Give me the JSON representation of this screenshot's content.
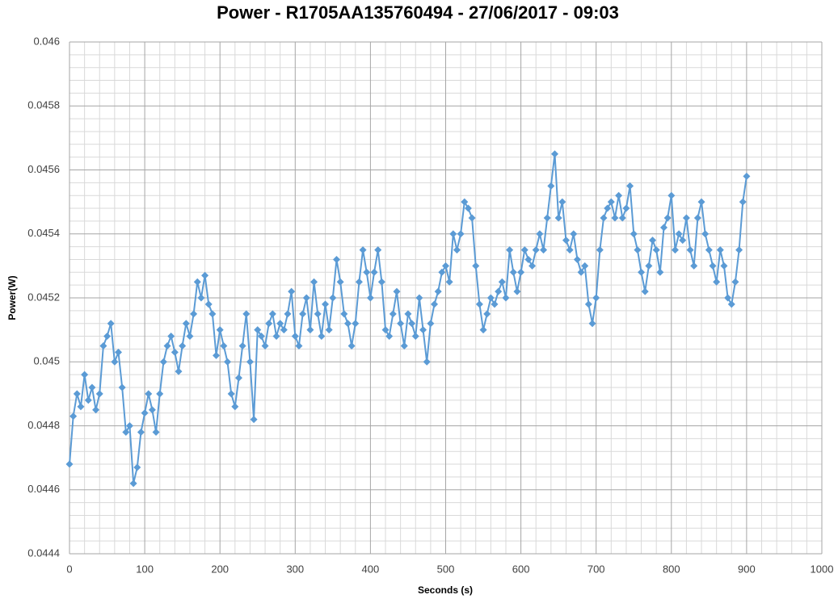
{
  "chart_data": {
    "type": "line",
    "title": "Power - R1705AA135760494 - 27/06/2017 - 09:03",
    "x_label": "Seconds (s)",
    "y_label": "Power(W)",
    "xlim": [
      0,
      1000
    ],
    "xticks": [
      0,
      100,
      200,
      300,
      400,
      500,
      600,
      700,
      800,
      900,
      1000
    ],
    "ylim": [
      0.0444,
      0.046
    ],
    "yticks": [
      0.0444,
      0.0446,
      0.0448,
      0.045,
      0.0452,
      0.0454,
      0.0456,
      0.0458,
      0.046
    ],
    "grid": true,
    "minor_grid": 5,
    "marker": "diamond",
    "x": [
      0,
      5,
      10,
      15,
      20,
      25,
      30,
      35,
      40,
      45,
      50,
      55,
      60,
      65,
      70,
      75,
      80,
      85,
      90,
      95,
      100,
      105,
      110,
      115,
      120,
      125,
      130,
      135,
      140,
      145,
      150,
      155,
      160,
      165,
      170,
      175,
      180,
      185,
      190,
      195,
      200,
      205,
      210,
      215,
      220,
      225,
      230,
      235,
      240,
      245,
      250,
      255,
      260,
      265,
      270,
      275,
      280,
      285,
      290,
      295,
      300,
      305,
      310,
      315,
      320,
      325,
      330,
      335,
      340,
      345,
      350,
      355,
      360,
      365,
      370,
      375,
      380,
      385,
      390,
      395,
      400,
      405,
      410,
      415,
      420,
      425,
      430,
      435,
      440,
      445,
      450,
      455,
      460,
      465,
      470,
      475,
      480,
      485,
      490,
      495,
      500,
      505,
      510,
      515,
      520,
      525,
      530,
      535,
      540,
      545,
      550,
      555,
      560,
      565,
      570,
      575,
      580,
      585,
      590,
      595,
      600,
      605,
      610,
      615,
      620,
      625,
      630,
      635,
      640,
      645,
      650,
      655,
      660,
      665,
      670,
      675,
      680,
      685,
      690,
      695,
      700,
      705,
      710,
      715,
      720,
      725,
      730,
      735,
      740,
      745,
      750,
      755,
      760,
      765,
      770,
      775,
      780,
      785,
      790,
      795,
      800,
      805,
      810,
      815,
      820,
      825,
      830,
      835,
      840,
      845,
      850,
      855,
      860,
      865,
      870,
      875,
      880,
      885,
      890,
      895,
      900
    ],
    "series": [
      {
        "name": "Power",
        "color": "#5b9bd5",
        "values": [
          0.04468,
          0.04483,
          0.0449,
          0.04486,
          0.04496,
          0.04488,
          0.04492,
          0.04485,
          0.0449,
          0.04505,
          0.04508,
          0.04512,
          0.045,
          0.04503,
          0.04492,
          0.04478,
          0.0448,
          0.04462,
          0.04467,
          0.04478,
          0.04484,
          0.0449,
          0.04485,
          0.04478,
          0.0449,
          0.045,
          0.04505,
          0.04508,
          0.04503,
          0.04497,
          0.04505,
          0.04512,
          0.04508,
          0.04515,
          0.04525,
          0.0452,
          0.04527,
          0.04518,
          0.04515,
          0.04502,
          0.0451,
          0.04505,
          0.045,
          0.0449,
          0.04486,
          0.04495,
          0.04505,
          0.04515,
          0.045,
          0.04482,
          0.0451,
          0.04508,
          0.04505,
          0.04512,
          0.04515,
          0.04508,
          0.04512,
          0.0451,
          0.04515,
          0.04522,
          0.04508,
          0.04505,
          0.04515,
          0.0452,
          0.0451,
          0.04525,
          0.04515,
          0.04508,
          0.04518,
          0.0451,
          0.0452,
          0.04532,
          0.04525,
          0.04515,
          0.04512,
          0.04505,
          0.04512,
          0.04525,
          0.04535,
          0.04528,
          0.0452,
          0.04528,
          0.04535,
          0.04525,
          0.0451,
          0.04508,
          0.04515,
          0.04522,
          0.04512,
          0.04505,
          0.04515,
          0.04512,
          0.04508,
          0.0452,
          0.0451,
          0.045,
          0.04512,
          0.04518,
          0.04522,
          0.04528,
          0.0453,
          0.04525,
          0.0454,
          0.04535,
          0.0454,
          0.0455,
          0.04548,
          0.04545,
          0.0453,
          0.04518,
          0.0451,
          0.04515,
          0.0452,
          0.04518,
          0.04522,
          0.04525,
          0.0452,
          0.04535,
          0.04528,
          0.04522,
          0.04528,
          0.04535,
          0.04532,
          0.0453,
          0.04535,
          0.0454,
          0.04535,
          0.04545,
          0.04555,
          0.04565,
          0.04545,
          0.0455,
          0.04538,
          0.04535,
          0.0454,
          0.04532,
          0.04528,
          0.0453,
          0.04518,
          0.04512,
          0.0452,
          0.04535,
          0.04545,
          0.04548,
          0.0455,
          0.04545,
          0.04552,
          0.04545,
          0.04548,
          0.04555,
          0.0454,
          0.04535,
          0.04528,
          0.04522,
          0.0453,
          0.04538,
          0.04535,
          0.04528,
          0.04542,
          0.04545,
          0.04552,
          0.04535,
          0.0454,
          0.04538,
          0.04545,
          0.04535,
          0.0453,
          0.04545,
          0.0455,
          0.0454,
          0.04535,
          0.0453,
          0.04525,
          0.04535,
          0.0453,
          0.0452,
          0.04518,
          0.04525,
          0.04535,
          0.0455,
          0.04558
        ]
      }
    ]
  }
}
